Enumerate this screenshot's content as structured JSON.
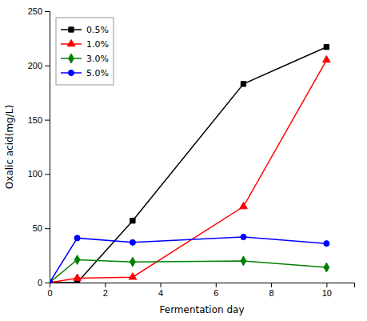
{
  "chart_data": {
    "type": "line",
    "xlabel": "Fermentation day",
    "ylabel": "Oxalic acid(mg/L)",
    "x": [
      0,
      1,
      3,
      7,
      10
    ],
    "xlim": [
      0,
      11
    ],
    "ylim": [
      0,
      250
    ],
    "xticks": [
      0,
      2,
      4,
      6,
      8,
      10
    ],
    "yticks": [
      0,
      50,
      100,
      150,
      200,
      250
    ],
    "grid": false,
    "legend": "upper left",
    "series": [
      {
        "name": "0.5%",
        "color": "black",
        "marker": "square",
        "line_style": "solid",
        "values": [
          0,
          0,
          57,
          183,
          217
        ]
      },
      {
        "name": "1.0%",
        "color": "red",
        "marker": "triangle",
        "line_style": "solid",
        "values": [
          0,
          4,
          5,
          70,
          205
        ]
      },
      {
        "name": "3.0%",
        "color": "green",
        "marker": "diamond",
        "line_style": "solid",
        "values": [
          0,
          21,
          19,
          20,
          14
        ]
      },
      {
        "name": "5.0%",
        "color": "blue",
        "marker": "circle",
        "line_style": "solid",
        "values": [
          0,
          41,
          37,
          42,
          36
        ]
      }
    ]
  }
}
